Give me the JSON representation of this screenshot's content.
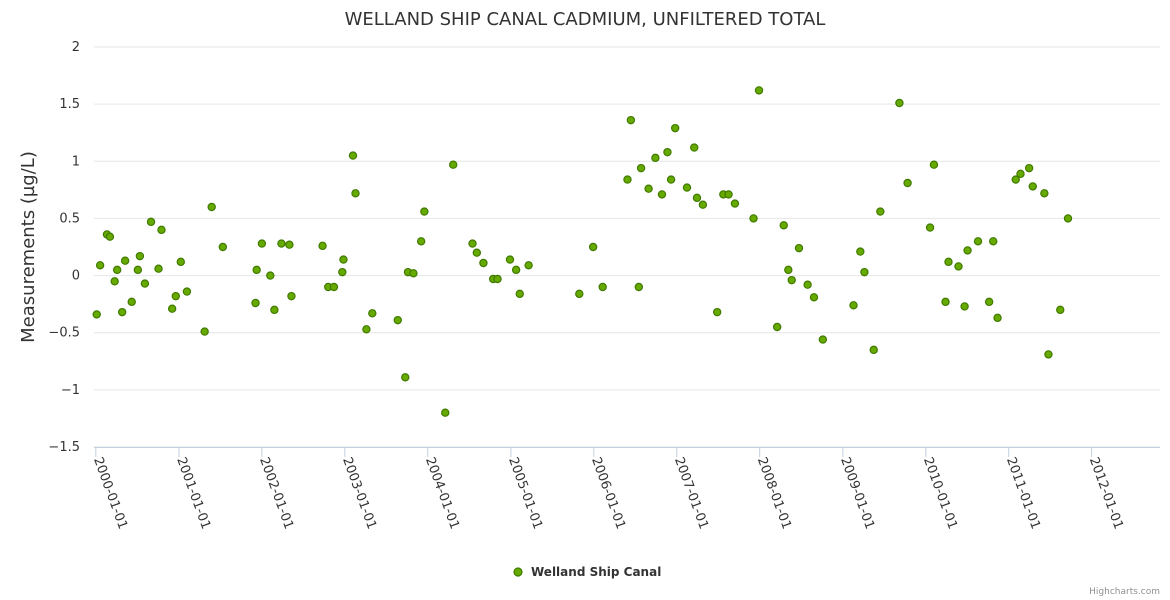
{
  "chart_data": {
    "type": "scatter",
    "title": "WELLAND SHIP CANAL CADMIUM, UNFILTERED TOTAL",
    "ylabel": "Measurements (µg/L)",
    "xlabel": "",
    "x_type": "date",
    "xlim": [
      "1999-12-24",
      "2012-10-28"
    ],
    "ylim": [
      -1.5,
      2
    ],
    "y_ticks": [
      {
        "value": -1.5,
        "label": "−1.5"
      },
      {
        "value": -1,
        "label": "−1"
      },
      {
        "value": -0.5,
        "label": "−0.5"
      },
      {
        "value": 0,
        "label": "0"
      },
      {
        "value": 0.5,
        "label": "0.5"
      },
      {
        "value": 1,
        "label": "1"
      },
      {
        "value": 1.5,
        "label": "1.5"
      },
      {
        "value": 2,
        "label": "2"
      }
    ],
    "x_ticks": [
      "2000-01-01",
      "2001-01-01",
      "2002-01-01",
      "2003-01-01",
      "2004-01-01",
      "2005-01-01",
      "2006-01-01",
      "2007-01-01",
      "2008-01-01",
      "2009-01-01",
      "2010-01-01",
      "2011-01-01",
      "2012-01-01"
    ],
    "grid": {
      "horizontal": true,
      "vertical": false
    },
    "legend_position": "bottom-center",
    "series": [
      {
        "name": "Welland Ship Canal",
        "color": "#66aa00",
        "stroke": "#3f7a00",
        "points": [
          [
            "2000-01-05",
            -0.34
          ],
          [
            "2000-01-20",
            0.09
          ],
          [
            "2000-02-19",
            0.36
          ],
          [
            "2000-03-03",
            0.34
          ],
          [
            "2000-03-24",
            -0.05
          ],
          [
            "2000-04-04",
            0.05
          ],
          [
            "2000-04-26",
            -0.32
          ],
          [
            "2000-05-09",
            0.13
          ],
          [
            "2000-06-07",
            -0.23
          ],
          [
            "2000-07-04",
            0.05
          ],
          [
            "2000-07-13",
            0.17
          ],
          [
            "2000-08-04",
            -0.07
          ],
          [
            "2000-08-31",
            0.47
          ],
          [
            "2000-10-03",
            0.06
          ],
          [
            "2000-10-16",
            0.4
          ],
          [
            "2000-12-02",
            -0.29
          ],
          [
            "2000-12-18",
            -0.18
          ],
          [
            "2001-01-09",
            0.12
          ],
          [
            "2001-02-05",
            -0.14
          ],
          [
            "2001-04-24",
            -0.49
          ],
          [
            "2001-05-25",
            0.6
          ],
          [
            "2001-07-13",
            0.25
          ],
          [
            "2001-12-04",
            -0.24
          ],
          [
            "2001-12-09",
            0.05
          ],
          [
            "2002-01-01",
            0.28
          ],
          [
            "2002-02-07",
            0.0
          ],
          [
            "2002-02-25",
            -0.3
          ],
          [
            "2002-03-28",
            0.28
          ],
          [
            "2002-05-02",
            0.27
          ],
          [
            "2002-05-11",
            -0.18
          ],
          [
            "2002-09-25",
            0.26
          ],
          [
            "2002-10-20",
            -0.1
          ],
          [
            "2002-11-14",
            -0.1
          ],
          [
            "2002-12-21",
            0.03
          ],
          [
            "2002-12-26",
            0.14
          ],
          [
            "2003-02-06",
            1.05
          ],
          [
            "2003-02-17",
            0.72
          ],
          [
            "2003-04-06",
            -0.47
          ],
          [
            "2003-05-02",
            -0.33
          ],
          [
            "2003-08-22",
            -0.39
          ],
          [
            "2003-09-24",
            -0.89
          ],
          [
            "2003-10-06",
            0.03
          ],
          [
            "2003-10-30",
            0.02
          ],
          [
            "2003-12-03",
            0.3
          ],
          [
            "2003-12-17",
            0.56
          ],
          [
            "2004-03-18",
            -1.2
          ],
          [
            "2004-04-22",
            0.97
          ],
          [
            "2004-07-16",
            0.28
          ],
          [
            "2004-08-04",
            0.2
          ],
          [
            "2004-09-02",
            0.11
          ],
          [
            "2004-10-15",
            -0.03
          ],
          [
            "2004-11-03",
            -0.03
          ],
          [
            "2004-12-28",
            0.14
          ],
          [
            "2005-01-24",
            0.05
          ],
          [
            "2005-02-09",
            -0.16
          ],
          [
            "2005-03-20",
            0.09
          ],
          [
            "2005-10-29",
            -0.16
          ],
          [
            "2005-12-29",
            0.25
          ],
          [
            "2006-02-09",
            -0.1
          ],
          [
            "2006-05-29",
            0.84
          ],
          [
            "2006-06-13",
            1.36
          ],
          [
            "2006-07-18",
            -0.1
          ],
          [
            "2006-07-28",
            0.94
          ],
          [
            "2006-08-30",
            0.76
          ],
          [
            "2006-09-29",
            1.03
          ],
          [
            "2006-10-28",
            0.71
          ],
          [
            "2006-11-21",
            1.08
          ],
          [
            "2006-12-07",
            0.84
          ],
          [
            "2006-12-25",
            1.29
          ],
          [
            "2007-02-15",
            0.77
          ],
          [
            "2007-03-19",
            1.12
          ],
          [
            "2007-03-31",
            0.68
          ],
          [
            "2007-04-26",
            0.62
          ],
          [
            "2007-06-28",
            -0.32
          ],
          [
            "2007-07-25",
            0.71
          ],
          [
            "2007-08-17",
            0.71
          ],
          [
            "2007-09-14",
            0.63
          ],
          [
            "2007-12-05",
            0.5
          ],
          [
            "2007-12-29",
            1.62
          ],
          [
            "2008-03-18",
            -0.45
          ],
          [
            "2008-04-16",
            0.44
          ],
          [
            "2008-05-06",
            0.05
          ],
          [
            "2008-05-21",
            -0.04
          ],
          [
            "2008-06-22",
            0.24
          ],
          [
            "2008-07-30",
            -0.08
          ],
          [
            "2008-08-27",
            -0.19
          ],
          [
            "2008-10-05",
            -0.56
          ],
          [
            "2009-02-17",
            -0.26
          ],
          [
            "2009-03-19",
            0.21
          ],
          [
            "2009-04-06",
            0.03
          ],
          [
            "2009-05-17",
            -0.65
          ],
          [
            "2009-06-15",
            0.56
          ],
          [
            "2009-09-07",
            1.51
          ],
          [
            "2009-10-13",
            0.81
          ],
          [
            "2010-01-20",
            0.42
          ],
          [
            "2010-02-06",
            0.97
          ],
          [
            "2010-03-29",
            -0.23
          ],
          [
            "2010-04-11",
            0.12
          ],
          [
            "2010-05-25",
            0.08
          ],
          [
            "2010-06-21",
            -0.27
          ],
          [
            "2010-07-04",
            0.22
          ],
          [
            "2010-08-19",
            0.3
          ],
          [
            "2010-10-07",
            -0.23
          ],
          [
            "2010-10-25",
            0.3
          ],
          [
            "2010-11-13",
            -0.37
          ],
          [
            "2011-02-01",
            0.84
          ],
          [
            "2011-02-22",
            0.89
          ],
          [
            "2011-04-01",
            0.94
          ],
          [
            "2011-04-17",
            0.78
          ],
          [
            "2011-06-07",
            0.72
          ],
          [
            "2011-06-25",
            -0.69
          ],
          [
            "2011-08-16",
            -0.3
          ],
          [
            "2011-09-19",
            0.5
          ]
        ]
      }
    ],
    "credits": "Highcharts.com"
  }
}
